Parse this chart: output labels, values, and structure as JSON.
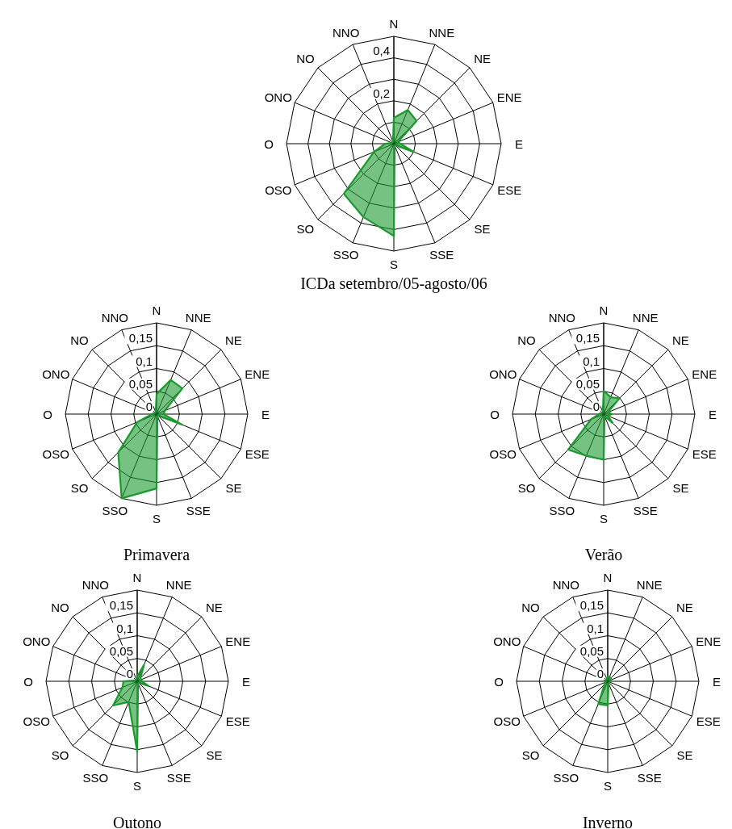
{
  "chart_data": [
    {
      "type": "radar",
      "title": "ICDa setembro/05-agosto/06",
      "categories": [
        "N",
        "NNE",
        "NE",
        "ENE",
        "E",
        "ESE",
        "SE",
        "SSE",
        "S",
        "SSO",
        "SO",
        "OSO",
        "O",
        "ONO",
        "NO",
        "NNO"
      ],
      "ylim": [
        0,
        0.5
      ],
      "yticks": [
        {
          "value": 0.2,
          "label": "0,2"
        },
        {
          "value": 0.4,
          "label": "0,4"
        }
      ],
      "grid": true,
      "series": [
        {
          "color": "#1a9a2e",
          "values": [
            0.12,
            0.17,
            0.15,
            0.02,
            0.03,
            0.1,
            0.01,
            0.01,
            0.43,
            0.37,
            0.33,
            0.1,
            0.04,
            0.01,
            0.01,
            0.01
          ]
        }
      ]
    },
    {
      "type": "radar",
      "title": "Primavera",
      "categories": [
        "N",
        "NNE",
        "NE",
        "ENE",
        "E",
        "ESE",
        "SE",
        "SSE",
        "S",
        "SSO",
        "SO",
        "OSO",
        "O",
        "ONO",
        "NO",
        "NNO"
      ],
      "ylim": [
        0,
        0.2
      ],
      "yticks": [
        {
          "value": 0,
          "label": "0"
        },
        {
          "value": 0.05,
          "label": "0,05"
        },
        {
          "value": 0.1,
          "label": "0,1"
        },
        {
          "value": 0.15,
          "label": "0,15"
        }
      ],
      "grid": true,
      "series": [
        {
          "color": "#1a9a2e",
          "values": [
            0.044,
            0.081,
            0.08,
            0.02,
            0.015,
            0.06,
            0.005,
            0.005,
            0.163,
            0.2,
            0.119,
            0.046,
            0.01,
            0.005,
            0.005,
            0.005
          ]
        }
      ]
    },
    {
      "type": "radar",
      "title": "Verão",
      "categories": [
        "N",
        "NNE",
        "NE",
        "ENE",
        "E",
        "ESE",
        "SE",
        "SSE",
        "S",
        "SSO",
        "SO",
        "OSO",
        "O",
        "ONO",
        "NO",
        "NNO"
      ],
      "ylim": [
        0,
        0.2
      ],
      "yticks": [
        {
          "value": 0,
          "label": "0"
        },
        {
          "value": 0.05,
          "label": "0,05"
        },
        {
          "value": 0.1,
          "label": "0,1"
        },
        {
          "value": 0.15,
          "label": "0,15"
        }
      ],
      "grid": true,
      "series": [
        {
          "color": "#1a9a2e",
          "values": [
            0.051,
            0.04,
            0.049,
            0.01,
            0.018,
            0.01,
            0.028,
            0.005,
            0.1,
            0.099,
            0.11,
            0.03,
            0.01,
            0.005,
            0.005,
            0.005
          ]
        }
      ]
    },
    {
      "type": "radar",
      "title": "Outono",
      "categories": [
        "N",
        "NNE",
        "NE",
        "ENE",
        "E",
        "ESE",
        "SE",
        "SSE",
        "S",
        "SSO",
        "SO",
        "OSO",
        "O",
        "ONO",
        "NO",
        "NNO"
      ],
      "ylim": [
        0,
        0.2
      ],
      "yticks": [
        {
          "value": 0,
          "label": "0"
        },
        {
          "value": 0.05,
          "label": "0,05"
        },
        {
          "value": 0.1,
          "label": "0,1"
        },
        {
          "value": 0.15,
          "label": "0,15"
        }
      ],
      "grid": true,
      "series": [
        {
          "color": "#1a9a2e",
          "values": [
            0.01,
            0.039,
            0.01,
            0.01,
            0.01,
            0.028,
            0.005,
            0.005,
            0.154,
            0.049,
            0.075,
            0.035,
            0.03,
            0.005,
            0.005,
            0.005
          ]
        }
      ]
    },
    {
      "type": "radar",
      "title": "Inverno",
      "categories": [
        "N",
        "NNE",
        "NE",
        "ENE",
        "E",
        "ESE",
        "SE",
        "SSE",
        "S",
        "SSO",
        "SO",
        "OSO",
        "O",
        "ONO",
        "NO",
        "NNO"
      ],
      "ylim": [
        0,
        0.2
      ],
      "yticks": [
        {
          "value": 0,
          "label": "0"
        },
        {
          "value": 0.05,
          "label": "0,05"
        },
        {
          "value": 0.1,
          "label": "0,1"
        },
        {
          "value": 0.15,
          "label": "0,15"
        }
      ],
      "grid": true,
      "series": [
        {
          "color": "#1a9a2e",
          "values": [
            0.01,
            0.01,
            0.01,
            0.005,
            0.005,
            0.005,
            0.005,
            0.005,
            0.053,
            0.054,
            0.01,
            0.005,
            0.005,
            0.005,
            0.005,
            0.005
          ]
        }
      ]
    }
  ]
}
